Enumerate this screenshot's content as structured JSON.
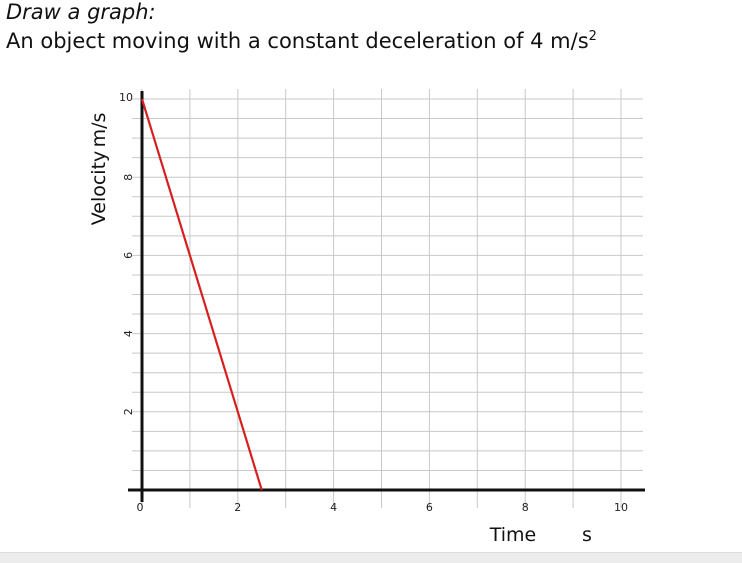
{
  "heading": {
    "line1": "Draw a graph:",
    "line2_text": "An object moving with a constant deceleration of 4 m/s",
    "line2_sup": "2"
  },
  "chart_data": {
    "type": "line",
    "title": "An object moving with a constant deceleration of 4 m/s²",
    "xlabel": "Time",
    "xunit": "s",
    "ylabel": "Velocity",
    "yunit": "m/s",
    "xlim": [
      0,
      10
    ],
    "ylim": [
      0,
      10
    ],
    "x_ticks": [
      "2",
      "4",
      "6",
      "8",
      "10"
    ],
    "y_ticks": [
      "2",
      "4",
      "6",
      "8",
      "10"
    ],
    "origin_label": "0",
    "grid": true,
    "series": [
      {
        "name": "velocity",
        "color": "#d62020",
        "x": [
          0,
          2.5
        ],
        "y": [
          10,
          0
        ]
      }
    ]
  },
  "colors": {
    "grid": "#c8c8c8",
    "axis": "#111111",
    "line": "#d62020"
  }
}
